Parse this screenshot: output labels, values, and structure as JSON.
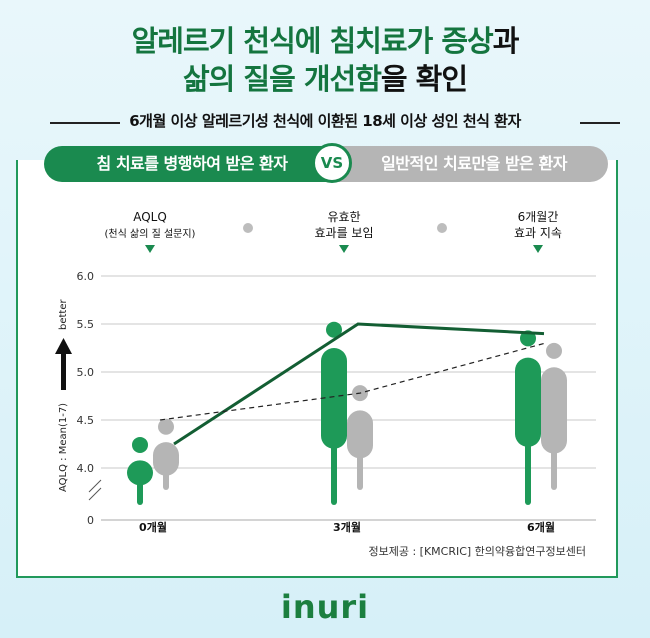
{
  "headline": {
    "line1_green": "알레르기 천식에 침치료가 증상",
    "line1_dark": "과",
    "line2_green": "삶의 질을 개선함",
    "line2_dark": "을 확인"
  },
  "subtitle": "6개월 이상 알레르기성 천식에 이환된 18세 이상 성인 천식 환자",
  "comparison": {
    "left": "침 치료를 병행하여 받은 환자",
    "vs": "VS",
    "right": "일반적인 치료만을 받은 환자"
  },
  "annotations": [
    {
      "line1": "AQLQ",
      "line2": "(천식 삶의 질 설문지)"
    },
    {
      "line1": "유효한",
      "line2": "효과를 보임"
    },
    {
      "line1": "6개월간",
      "line2": "효과 지속"
    }
  ],
  "axis": {
    "ylabel": "AQLQ : Mean(1-7)",
    "better": "better",
    "zero": "0"
  },
  "chart_data": {
    "type": "line",
    "categories": [
      "0개월",
      "3개월",
      "6개월"
    ],
    "yticks": [
      4.0,
      4.5,
      5.0,
      5.5,
      6.0
    ],
    "ylim": [
      3.5,
      6.0
    ],
    "grid": true,
    "series": [
      {
        "color": "#1a7a45",
        "dot_color": "#1e9a58",
        "values": [
          4.25,
          5.5,
          5.4
        ],
        "markers": [
          4.24,
          5.44,
          5.35
        ],
        "bar_ranges": [
          [
            3.82,
            4.08
          ],
          [
            4.2,
            5.25
          ],
          [
            4.22,
            5.15
          ]
        ]
      },
      {
        "color": "#222222",
        "dot_color": "#b5b5b5",
        "values": [
          4.5,
          4.78,
          5.3
        ],
        "markers": [
          4.43,
          4.78,
          5.22
        ],
        "bar_ranges": [
          [
            3.92,
            4.27
          ],
          [
            4.1,
            4.6
          ],
          [
            4.15,
            5.05
          ]
        ]
      }
    ]
  },
  "source": "정보제공 : [KMCRIC] 한의약융합연구정보센터",
  "logo": "inuri",
  "colors": {
    "brand_green": "#1a8a4f",
    "gray": "#b5b5b5",
    "dark_green_line": "#135e33"
  }
}
